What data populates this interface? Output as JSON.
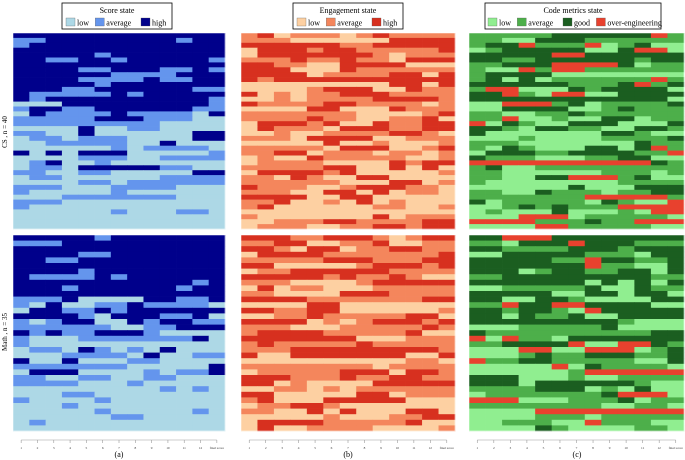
{
  "chart_data": {
    "type": "heatmap",
    "rows": [
      "CS , n = 40",
      "Math , n = 35"
    ],
    "x_ticks": [
      "1",
      "2",
      "3",
      "4",
      "5",
      "6",
      "7",
      "8",
      "9",
      "10",
      "11",
      "12",
      "final score"
    ],
    "panels": [
      {
        "id": "a",
        "title": "Score state",
        "caption": "(a)",
        "legend": [
          {
            "label": "low",
            "color": "#add8e6"
          },
          {
            "label": "average",
            "color": "#6495ed"
          },
          {
            "label": "high",
            "color": "#00008b"
          }
        ]
      },
      {
        "id": "b",
        "title": "Engagement  state",
        "caption": "(b)",
        "legend": [
          {
            "label": "low",
            "color": "#fdd0a2"
          },
          {
            "label": "average",
            "color": "#f4865c"
          },
          {
            "label": "high",
            "color": "#d7301f"
          }
        ]
      },
      {
        "id": "c",
        "title": "Code metrics state",
        "caption": "(c)",
        "legend": [
          {
            "label": "low",
            "color": "#90ee90"
          },
          {
            "label": "average",
            "color": "#4daf4a"
          },
          {
            "label": "good",
            "color": "#1b5e20"
          },
          {
            "label": "over-engineering",
            "color": "#e8412e"
          }
        ]
      }
    ],
    "n_students": {
      "CS": 40,
      "Math": 35
    },
    "n_columns": 13
  }
}
